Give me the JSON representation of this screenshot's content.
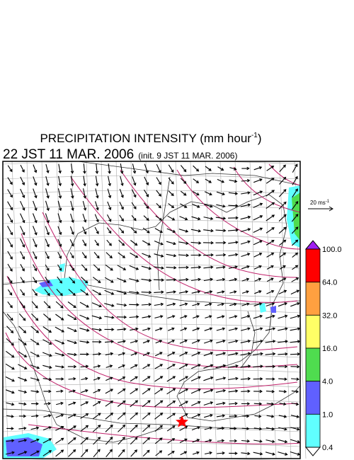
{
  "header": {
    "title": "PRECIPITATION INTENSITY (mm hour",
    "title_unit_sup": "-1",
    "title_close": ")",
    "valid_time": "22 JST 11 MAR. 2006",
    "init_time": "(init. 9 JST 11 MAR. 2006)"
  },
  "wind_scale": {
    "label": "20 ms",
    "label_sup": "-1"
  },
  "colorbar": {
    "labels": [
      "100.0",
      "64.0",
      "32.0",
      "16.0",
      "4.0",
      "1.0",
      "0.4"
    ],
    "colors": [
      "#a020f0",
      "#ff0000",
      "#ffa040",
      "#ffff66",
      "#4fdc4f",
      "#6060ff",
      "#60ffff",
      "#ffffff"
    ]
  }
}
